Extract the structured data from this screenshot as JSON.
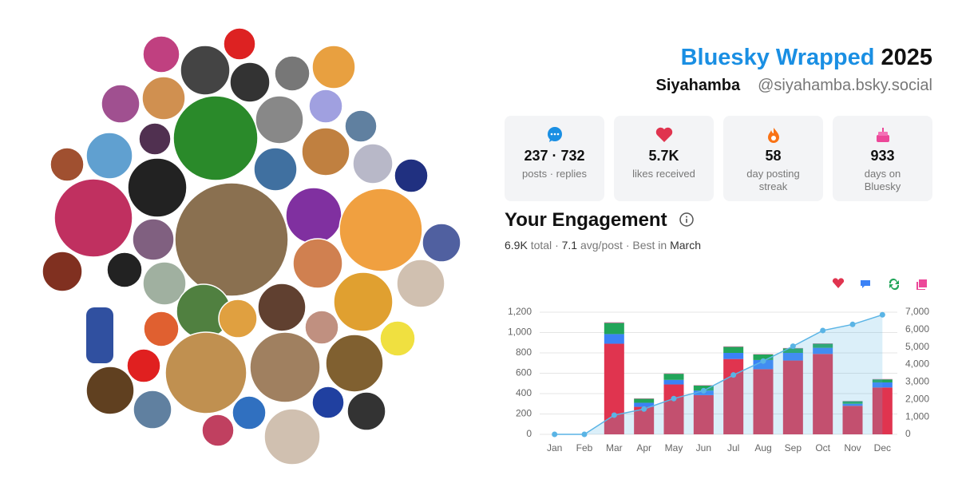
{
  "header": {
    "brand": "Bluesky Wrapped",
    "year": "2025",
    "name": "Siyahamba",
    "handle": "@siyahamba.bsky.social"
  },
  "stats": [
    {
      "value": "237 · 732",
      "label": "posts · replies"
    },
    {
      "value": "5.7K",
      "label": "likes received"
    },
    {
      "value": "58",
      "label": "day posting streak"
    },
    {
      "value": "933",
      "label": "days on Bluesky"
    }
  ],
  "engagement": {
    "title": "Your Engagement",
    "total": "6.9K",
    "total_label": "total",
    "separator": "·",
    "avg": "7.1",
    "avg_label": "avg/post",
    "best_label": "Best in",
    "best": "March"
  },
  "chart_data": {
    "type": "bar",
    "categories": [
      "Jan",
      "Feb",
      "Mar",
      "Apr",
      "May",
      "Jun",
      "Jul",
      "Aug",
      "Sep",
      "Oct",
      "Nov",
      "Dec"
    ],
    "stacked": true,
    "series": [
      {
        "color": "#e0344f",
        "values": [
          0,
          0,
          890,
          270,
          490,
          385,
          740,
          640,
          725,
          790,
          280,
          460
        ]
      },
      {
        "color": "#3b82f6",
        "values": [
          0,
          0,
          95,
          40,
          45,
          45,
          60,
          90,
          75,
          60,
          20,
          50
        ]
      },
      {
        "color": "#22a55a",
        "values": [
          0,
          0,
          110,
          40,
          60,
          50,
          60,
          55,
          45,
          40,
          25,
          30
        ]
      },
      {
        "color": "#ec4899",
        "values": [
          0,
          0,
          5,
          3,
          3,
          3,
          4,
          3,
          3,
          3,
          2,
          3
        ]
      },
      {
        "type": "line",
        "axis": "y2",
        "color": "#5ab4e5",
        "values": [
          0,
          0,
          1100,
          1450,
          2050,
          2500,
          3400,
          4200,
          5050,
          5950,
          6300,
          6850
        ]
      }
    ],
    "ylim": [
      0,
      1200
    ],
    "yticks": [
      0,
      200,
      400,
      600,
      800,
      {
        "value": 1000,
        "label": "1,000"
      },
      {
        "value": 1200,
        "label": "1,200"
      }
    ],
    "y2lim": [
      0,
      7000
    ],
    "y2ticks": [
      0,
      {
        "value": 1000,
        "label": "1,000"
      },
      {
        "value": 2000,
        "label": "2,000"
      },
      {
        "value": 3000,
        "label": "3,000"
      },
      {
        "value": 4000,
        "label": "4,000"
      },
      {
        "value": 5000,
        "label": "5,000"
      },
      {
        "value": 6000,
        "label": "6,000"
      },
      {
        "value": 7000,
        "label": "7,000"
      }
    ],
    "grid": true
  }
}
